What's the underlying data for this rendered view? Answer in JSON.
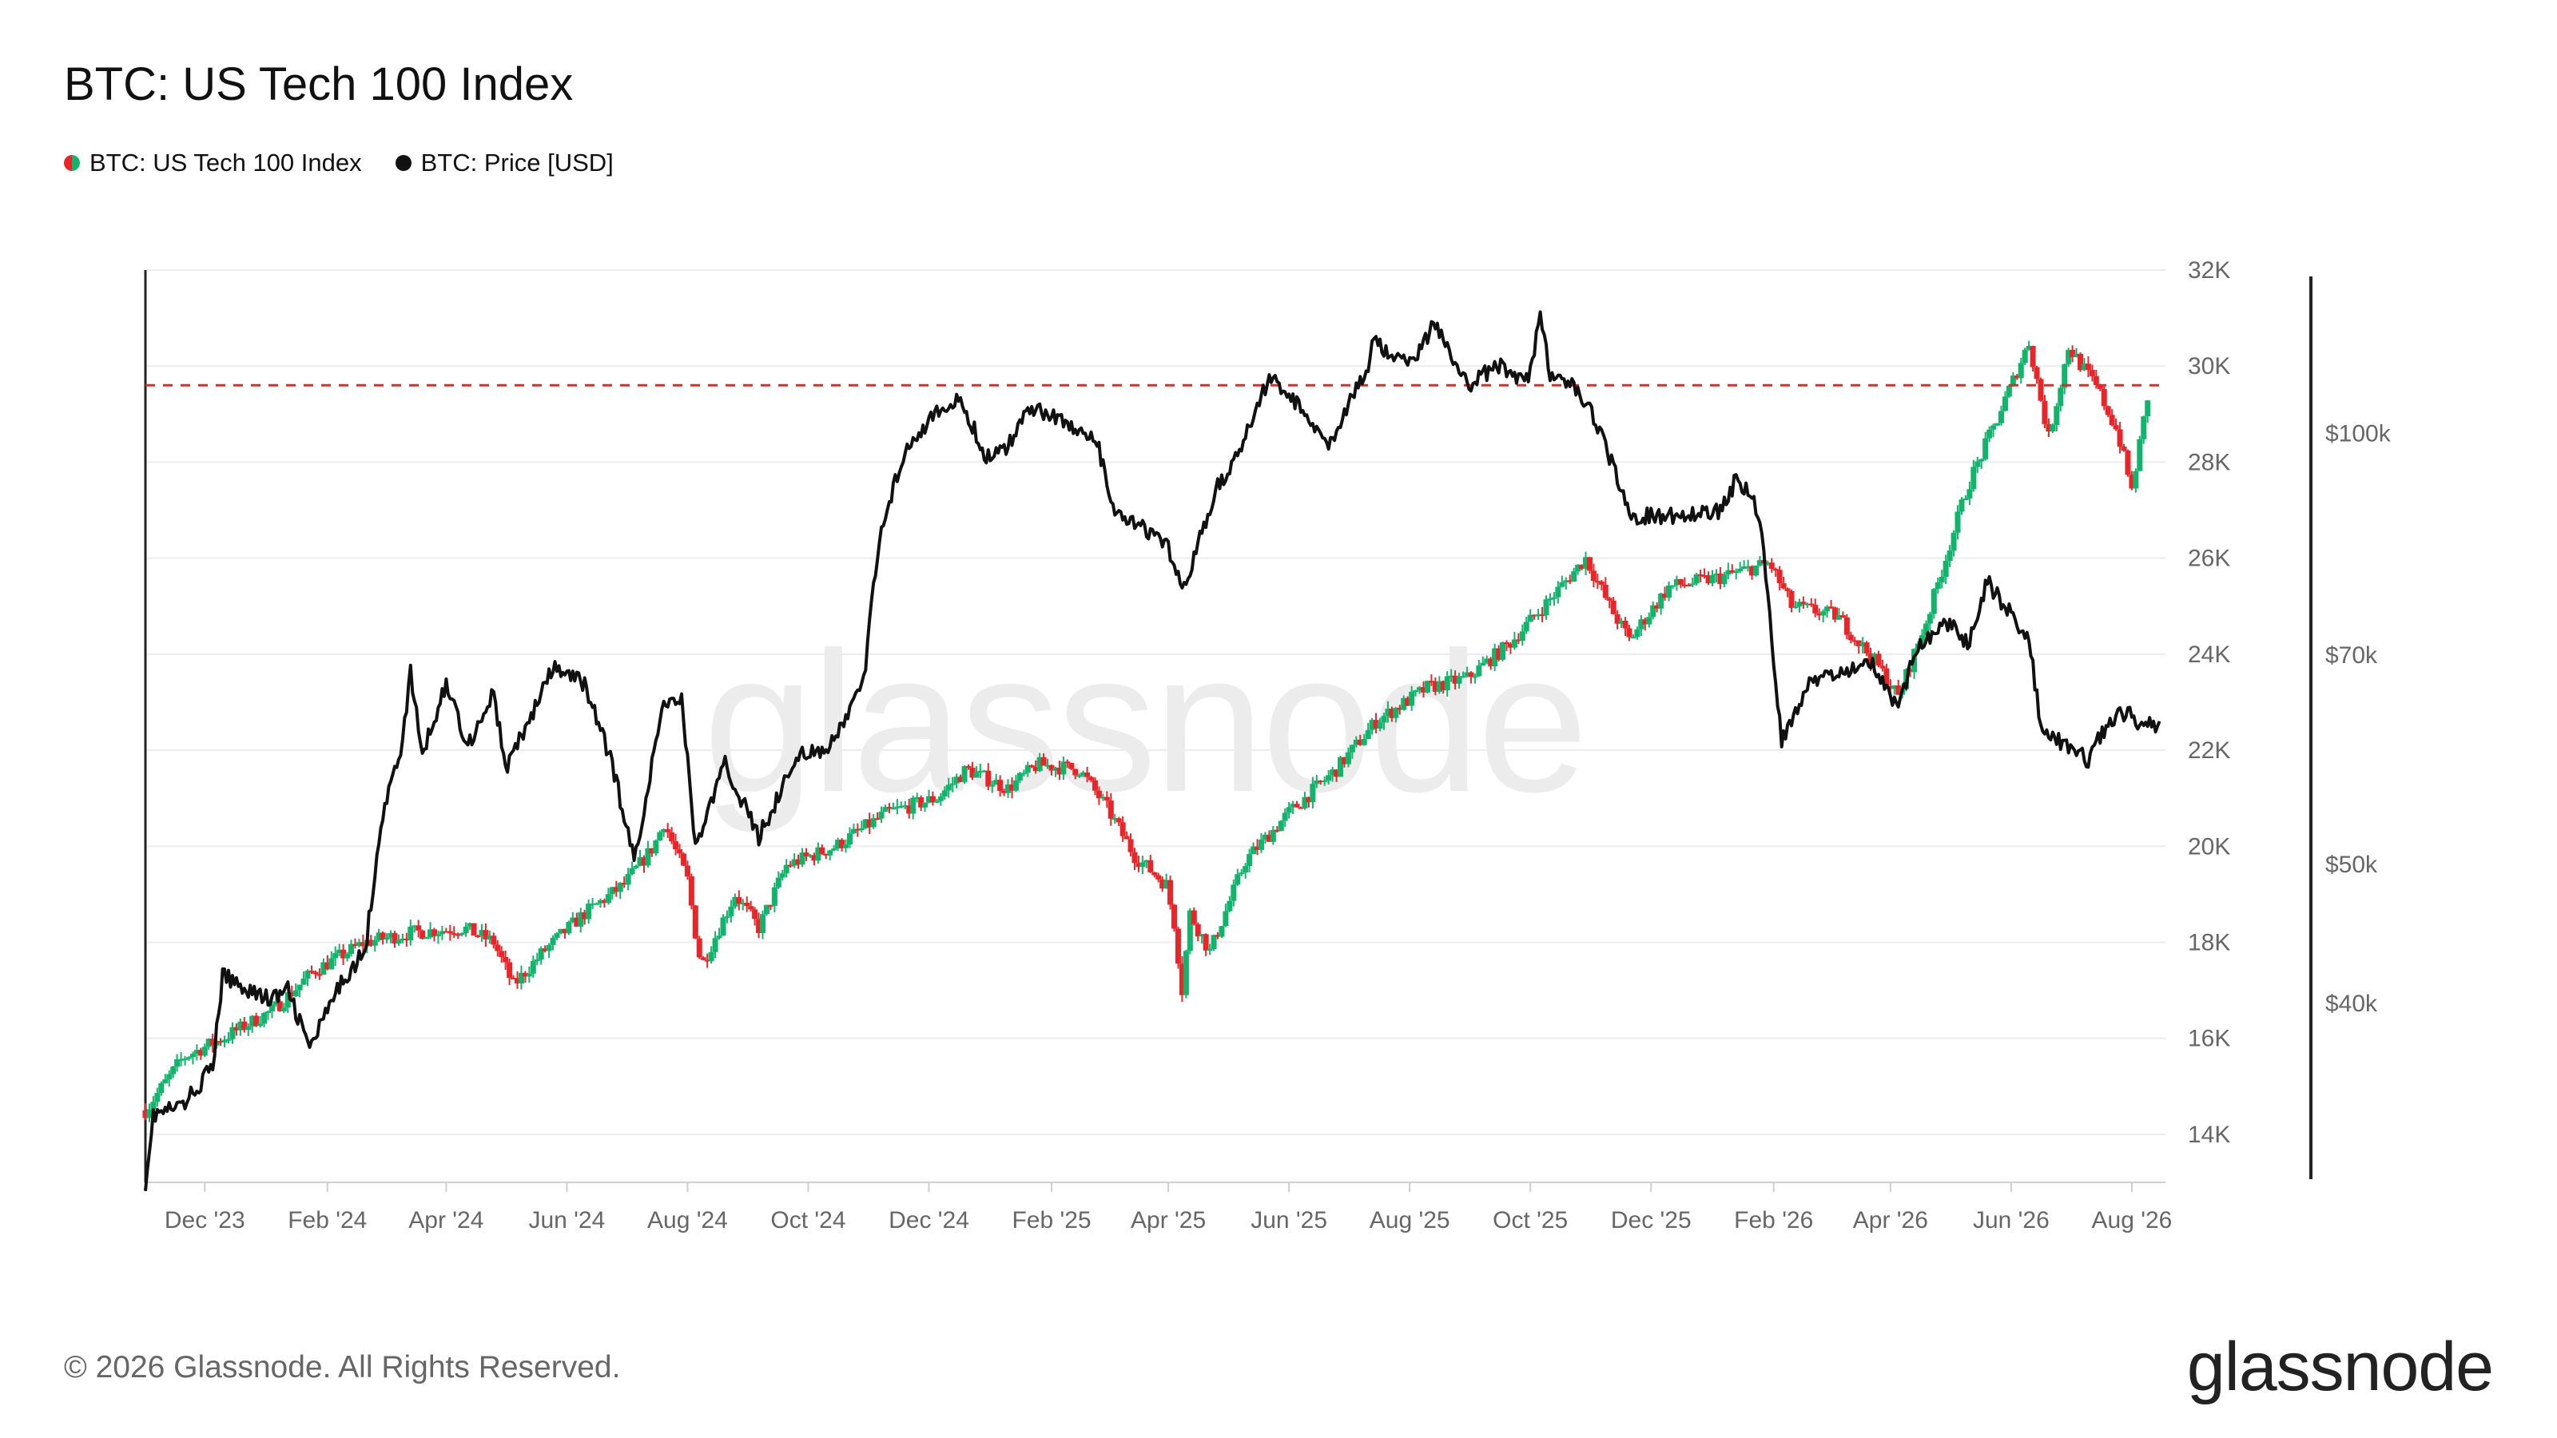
{
  "header": {
    "title": "BTC: US Tech 100 Index"
  },
  "legend": {
    "items": [
      {
        "label": "BTC: US Tech 100 Index",
        "color": "#12b36b",
        "color_down": "#e8262a"
      },
      {
        "label": "BTC: Price [USD]",
        "color": "#111111"
      }
    ]
  },
  "footer": {
    "copyright": "© 2026 Glassnode. All Rights Reserved.",
    "logo": "glassnode",
    "watermark": "glassnode"
  },
  "chart_data": {
    "type": "line",
    "title": "BTC: US Tech 100 Index",
    "x_tick_labels": [
      "Dec '23",
      "Feb '24",
      "Apr '24",
      "Jun '24",
      "Aug '24",
      "Oct '24",
      "Dec '24",
      "Feb '25",
      "Apr '25",
      "Jun '25",
      "Aug '25",
      "Oct '25",
      "Dec '25",
      "Feb '26",
      "Apr '26",
      "Jun '26",
      "Aug '26"
    ],
    "y_left": {
      "ticks": [
        14000,
        16000,
        18000,
        20000,
        22000,
        24000,
        26000,
        28000,
        30000,
        32000
      ],
      "tick_labels": [
        "14K",
        "16K",
        "18K",
        "20K",
        "22K",
        "24K",
        "26K",
        "28K",
        "30K",
        "32K"
      ],
      "range": [
        13000,
        32000
      ]
    },
    "y_right": {
      "scale": "log",
      "tick_values": [
        40000,
        50000,
        70000,
        100000
      ],
      "tick_labels": [
        "$40k",
        "$50k",
        "$70k",
        "$100k"
      ],
      "range": [
        30000,
        130000
      ]
    },
    "reference_line": {
      "axis": "left",
      "value": 29600,
      "color": "#e8262a",
      "style": "dashed"
    },
    "grid": true,
    "series": [
      {
        "name": "BTC: US Tech 100 Index",
        "axis": "left",
        "style": "candlestick",
        "up_color": "#12b36b",
        "down_color": "#e8262a",
        "points": [
          [
            "2023-11-01",
            14500
          ],
          [
            "2023-11-20",
            15600
          ],
          [
            "2023-12-10",
            16000
          ],
          [
            "2024-01-05",
            16600
          ],
          [
            "2024-01-25",
            17400
          ],
          [
            "2024-02-20",
            18000
          ],
          [
            "2024-03-15",
            18200
          ],
          [
            "2024-04-10",
            18300
          ],
          [
            "2024-04-25",
            18000
          ],
          [
            "2024-05-05",
            17100
          ],
          [
            "2024-05-20",
            17800
          ],
          [
            "2024-06-10",
            18600
          ],
          [
            "2024-06-30",
            19200
          ],
          [
            "2024-07-15",
            20000
          ],
          [
            "2024-07-20",
            20500
          ],
          [
            "2024-08-01",
            19300
          ],
          [
            "2024-08-05",
            18200
          ],
          [
            "2024-08-08",
            17500
          ],
          [
            "2024-08-25",
            19000
          ],
          [
            "2024-09-06",
            18300
          ],
          [
            "2024-09-20",
            19600
          ],
          [
            "2024-10-15",
            20000
          ],
          [
            "2024-11-10",
            20700
          ],
          [
            "2024-12-05",
            21000
          ],
          [
            "2024-12-20",
            21600
          ],
          [
            "2025-01-10",
            21200
          ],
          [
            "2025-01-25",
            21700
          ],
          [
            "2025-02-15",
            21600
          ],
          [
            "2025-03-01",
            20800
          ],
          [
            "2025-03-15",
            19800
          ],
          [
            "2025-03-31",
            19200
          ],
          [
            "2025-04-04",
            18400
          ],
          [
            "2025-04-08",
            17000
          ],
          [
            "2025-04-12",
            18600
          ],
          [
            "2025-04-22",
            17800
          ],
          [
            "2025-05-10",
            19700
          ],
          [
            "2025-06-01",
            20700
          ],
          [
            "2025-06-25",
            21600
          ],
          [
            "2025-07-15",
            22600
          ],
          [
            "2025-08-10",
            23300
          ],
          [
            "2025-08-30",
            23500
          ],
          [
            "2025-09-20",
            24200
          ],
          [
            "2025-10-10",
            25100
          ],
          [
            "2025-10-29",
            26000
          ],
          [
            "2025-11-10",
            25000
          ],
          [
            "2025-11-20",
            24300
          ],
          [
            "2025-12-10",
            25400
          ],
          [
            "2026-01-05",
            25600
          ],
          [
            "2026-01-30",
            25900
          ],
          [
            "2026-02-10",
            25000
          ],
          [
            "2026-03-05",
            24800
          ],
          [
            "2026-03-25",
            23800
          ],
          [
            "2026-04-05",
            23100
          ],
          [
            "2026-04-20",
            24800
          ],
          [
            "2026-05-10",
            27500
          ],
          [
            "2026-05-25",
            28900
          ],
          [
            "2026-06-10",
            30500
          ],
          [
            "2026-06-20",
            28500
          ],
          [
            "2026-06-30",
            30400
          ],
          [
            "2026-07-15",
            29500
          ],
          [
            "2026-07-25",
            28600
          ],
          [
            "2026-08-01",
            27400
          ],
          [
            "2026-08-10",
            29600
          ]
        ]
      },
      {
        "name": "BTC: Price [USD]",
        "axis": "left",
        "style": "line",
        "color": "#111111",
        "points": [
          [
            "2023-11-01",
            13000
          ],
          [
            "2023-11-05",
            14400
          ],
          [
            "2023-11-20",
            14600
          ],
          [
            "2023-12-05",
            15400
          ],
          [
            "2023-12-10",
            17300
          ],
          [
            "2024-01-03",
            16800
          ],
          [
            "2024-01-12",
            17000
          ],
          [
            "2024-01-23",
            15800
          ],
          [
            "2024-02-10",
            17300
          ],
          [
            "2024-02-20",
            17800
          ],
          [
            "2024-02-28",
            20500
          ],
          [
            "2024-03-10",
            22200
          ],
          [
            "2024-03-14",
            23600
          ],
          [
            "2024-03-20",
            21900
          ],
          [
            "2024-04-01",
            23400
          ],
          [
            "2024-04-12",
            22100
          ],
          [
            "2024-04-25",
            23200
          ],
          [
            "2024-05-01",
            21600
          ],
          [
            "2024-05-15",
            22800
          ],
          [
            "2024-05-25",
            23700
          ],
          [
            "2024-06-10",
            23400
          ],
          [
            "2024-06-24",
            21700
          ],
          [
            "2024-07-05",
            19700
          ],
          [
            "2024-07-20",
            23000
          ],
          [
            "2024-07-29",
            23100
          ],
          [
            "2024-08-05",
            20000
          ],
          [
            "2024-08-20",
            21700
          ],
          [
            "2024-09-06",
            20200
          ],
          [
            "2024-09-27",
            22000
          ],
          [
            "2024-10-10",
            21900
          ],
          [
            "2024-10-29",
            23400
          ],
          [
            "2024-11-06",
            26500
          ],
          [
            "2024-11-20",
            28400
          ],
          [
            "2024-12-05",
            29000
          ],
          [
            "2024-12-17",
            29300
          ],
          [
            "2024-12-30",
            28100
          ],
          [
            "2025-01-10",
            28300
          ],
          [
            "2025-01-20",
            29200
          ],
          [
            "2025-02-05",
            28900
          ],
          [
            "2025-02-24",
            28400
          ],
          [
            "2025-03-05",
            26900
          ],
          [
            "2025-03-20",
            26600
          ],
          [
            "2025-04-01",
            26200
          ],
          [
            "2025-04-08",
            25300
          ],
          [
            "2025-04-25",
            27400
          ],
          [
            "2025-05-10",
            28500
          ],
          [
            "2025-05-22",
            29800
          ],
          [
            "2025-06-05",
            29200
          ],
          [
            "2025-06-22",
            28400
          ],
          [
            "2025-07-10",
            29900
          ],
          [
            "2025-07-14",
            30500
          ],
          [
            "2025-08-01",
            30000
          ],
          [
            "2025-08-14",
            30900
          ],
          [
            "2025-08-30",
            29600
          ],
          [
            "2025-09-15",
            30000
          ],
          [
            "2025-09-30",
            29700
          ],
          [
            "2025-10-06",
            31100
          ],
          [
            "2025-10-11",
            29800
          ],
          [
            "2025-10-25",
            29500
          ],
          [
            "2025-11-05",
            28700
          ],
          [
            "2025-11-21",
            26800
          ],
          [
            "2025-12-01",
            26900
          ],
          [
            "2025-12-15",
            26900
          ],
          [
            "2026-01-05",
            27000
          ],
          [
            "2026-01-14",
            27700
          ],
          [
            "2026-01-25",
            26900
          ],
          [
            "2026-02-05",
            22200
          ],
          [
            "2026-02-20",
            23500
          ],
          [
            "2026-03-10",
            23600
          ],
          [
            "2026-03-20",
            24000
          ],
          [
            "2026-04-05",
            22900
          ],
          [
            "2026-04-15",
            24200
          ],
          [
            "2026-05-01",
            24700
          ],
          [
            "2026-05-10",
            24200
          ],
          [
            "2026-05-20",
            25500
          ],
          [
            "2026-06-10",
            24300
          ],
          [
            "2026-06-16",
            22500
          ],
          [
            "2026-06-25",
            22200
          ],
          [
            "2026-07-10",
            21800
          ],
          [
            "2026-07-20",
            22600
          ],
          [
            "2026-07-30",
            22800
          ],
          [
            "2026-08-05",
            22400
          ],
          [
            "2026-08-15",
            22600
          ]
        ]
      }
    ]
  }
}
